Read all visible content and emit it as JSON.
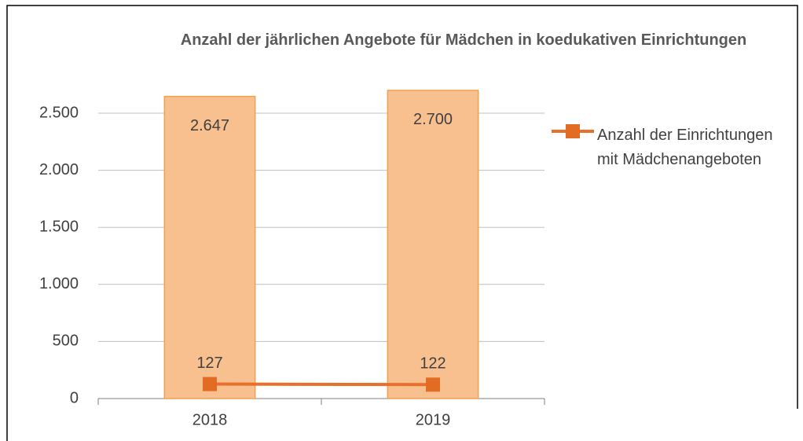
{
  "chart_data": {
    "type": "bar",
    "title": "Anzahl der jährlichen Angebote für Mädchen in koedukativen Einrichtungen",
    "categories": [
      "2018",
      "2019"
    ],
    "series": [
      {
        "kind": "bar",
        "color": "#f8c08f",
        "values": [
          2647,
          2700
        ],
        "value_labels": [
          "2.647",
          "2.700"
        ]
      },
      {
        "kind": "line",
        "name": "Anzahl der Einrichtungen mit Mädchenangeboten",
        "color": "#e8702a",
        "values": [
          127,
          122
        ]
      }
    ],
    "ylim": [
      0,
      2750
    ],
    "yticks": [
      0,
      500,
      {
        "value": 1000,
        "label": "1.000"
      },
      {
        "value": 1500,
        "label": "1.500"
      },
      {
        "value": 2000,
        "label": "2.000"
      },
      {
        "value": 2500,
        "label": "2.500"
      }
    ],
    "grid": true,
    "legend": "right"
  }
}
